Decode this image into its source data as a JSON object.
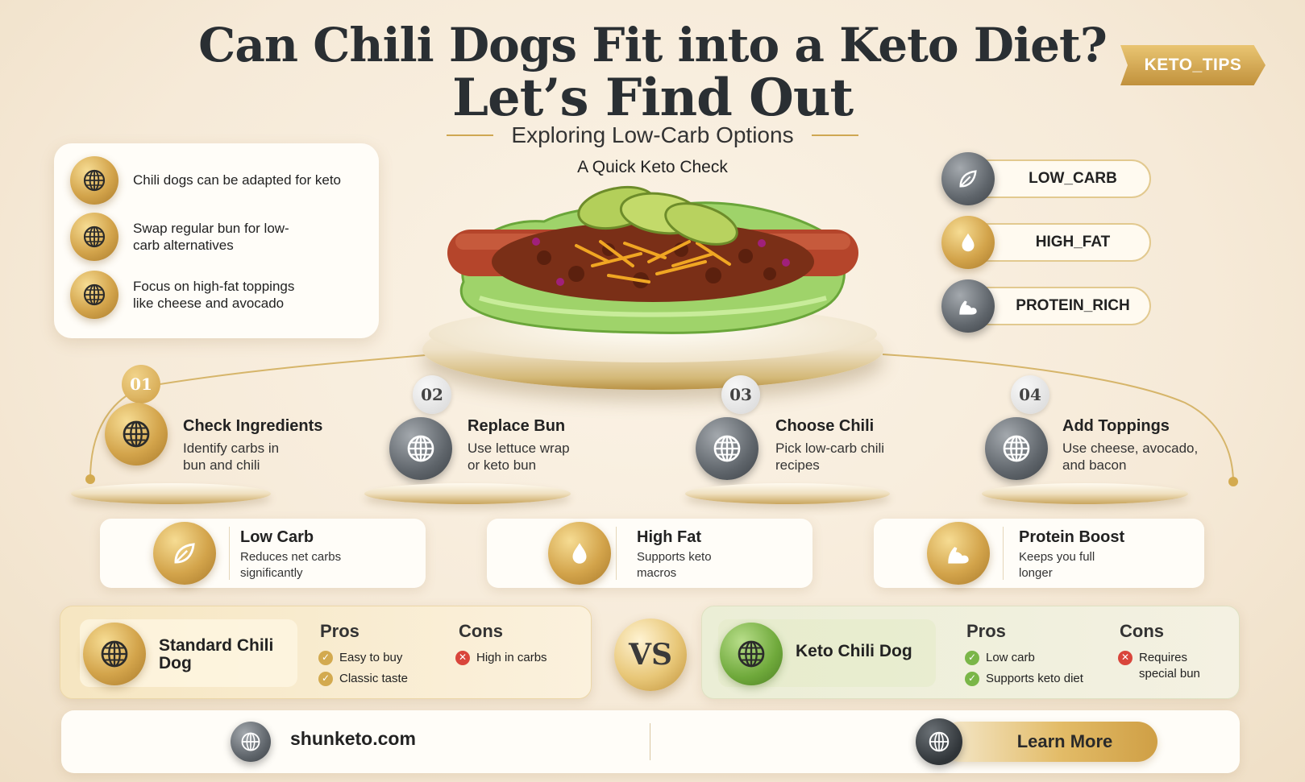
{
  "title": {
    "line1": "Can Chili Dogs Fit into a Keto Diet?",
    "line2": "Let’s Find Out",
    "subtitle": "Exploring Low-Carb Options",
    "section_label": "A Quick Keto Check"
  },
  "badge": "KETO_TIPS",
  "tips": [
    {
      "text": "Chili dogs can be adapted for keto",
      "icon": "globe-icon"
    },
    {
      "text": "Swap regular bun for low-carb alternatives",
      "icon": "globe-icon"
    },
    {
      "text": "Focus on high-fat toppings like cheese and avocado",
      "icon": "globe-icon"
    }
  ],
  "tags": [
    {
      "label": "LOW_CARB",
      "icon": "leaf-icon"
    },
    {
      "label": "HIGH_FAT",
      "icon": "drop-icon"
    },
    {
      "label": "PROTEIN_RICH",
      "icon": "muscle-icon"
    }
  ],
  "steps": [
    {
      "num": "01",
      "title": "Check Ingredients",
      "desc": "Identify carbs in bun and chili"
    },
    {
      "num": "02",
      "title": "Replace Bun",
      "desc": "Use lettuce wrap or keto bun"
    },
    {
      "num": "03",
      "title": "Choose Chili",
      "desc": "Pick low-carb chili recipes"
    },
    {
      "num": "04",
      "title": "Add Toppings",
      "desc": "Use cheese, avocado, and bacon"
    }
  ],
  "benefits": [
    {
      "title": "Low Carb",
      "desc": "Reduces net carbs significantly",
      "icon": "leaf-icon"
    },
    {
      "title": "High Fat",
      "desc": "Supports keto macros",
      "icon": "drop-icon"
    },
    {
      "title": "Protein Boost",
      "desc": "Keeps you full longer",
      "icon": "muscle-icon"
    }
  ],
  "comparison": {
    "left": {
      "name": "Standard Chili Dog",
      "pros_label": "Pros",
      "cons_label": "Cons",
      "pros": [
        "Easy to buy",
        "Classic taste"
      ],
      "cons": [
        "High in carbs"
      ]
    },
    "vs": "VS",
    "right": {
      "name": "Keto Chili Dog",
      "pros_label": "Pros",
      "cons_label": "Cons",
      "pros": [
        "Low carb",
        "Supports keto diet"
      ],
      "cons": [
        "Requires special bun"
      ]
    }
  },
  "footer": {
    "site": "shunketo.com",
    "button": "Learn More"
  },
  "colors": {
    "gold": "#d3a44b",
    "dark_text": "#2a2f33",
    "background": "#f6ead8",
    "pro_green": "#7ab648",
    "con_red": "#d9453b"
  }
}
